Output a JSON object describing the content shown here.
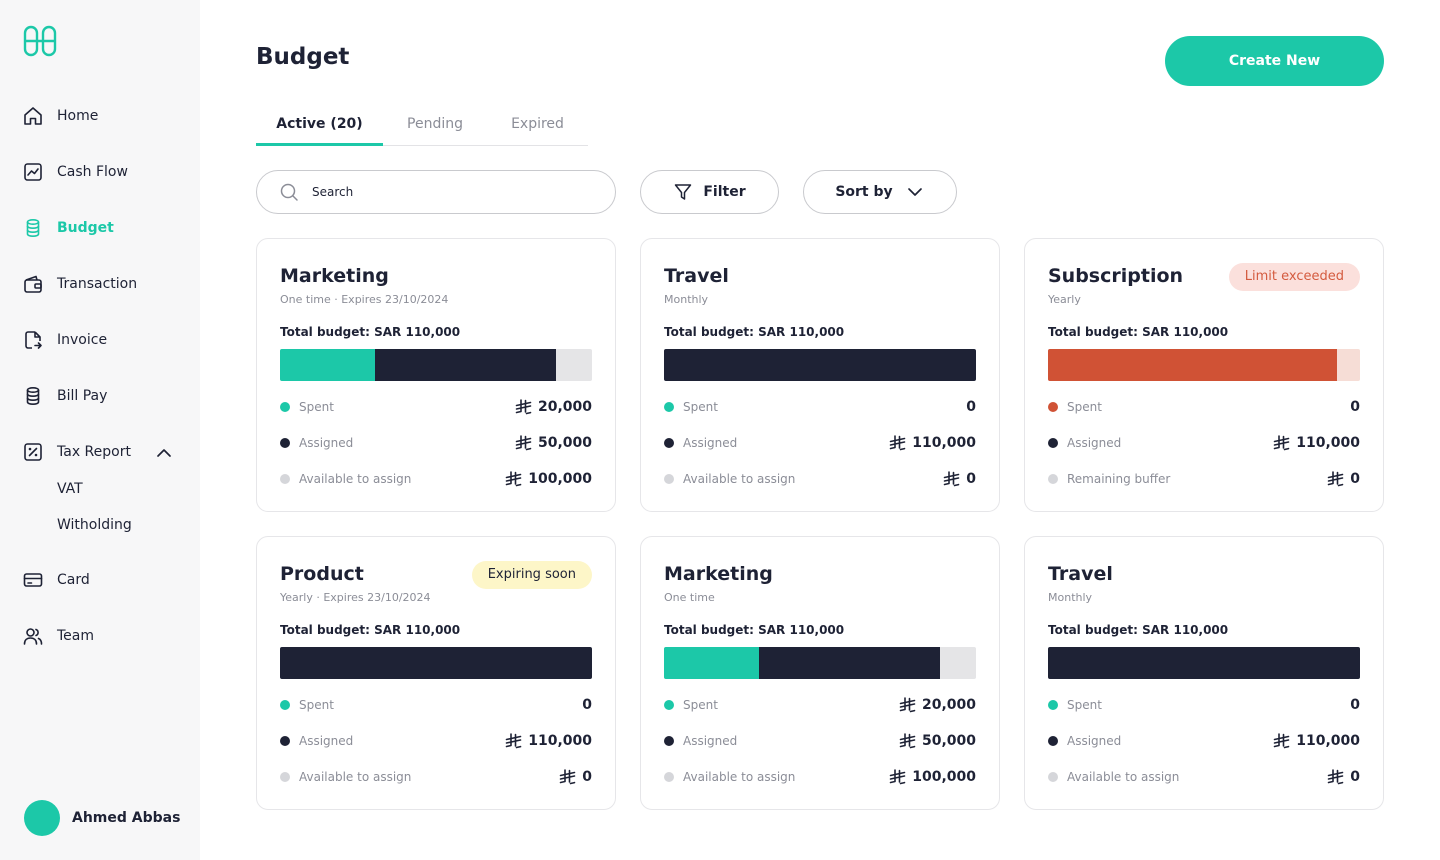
{
  "colors": {
    "accent": "#1cc8a8",
    "navy": "#1e2235",
    "danger": "#d05235",
    "danger_light": "#f6ddd6",
    "track": "#e5e5e7",
    "available_dot": "#d5d6da"
  },
  "sidebar": {
    "logo_icon": "brand-logo-icon",
    "items": [
      {
        "label": "Home",
        "icon": "home-icon"
      },
      {
        "label": "Cash Flow",
        "icon": "chart-icon"
      },
      {
        "label": "Budget",
        "icon": "coins-icon",
        "active": true
      },
      {
        "label": "Transaction",
        "icon": "wallet-icon"
      },
      {
        "label": "Invoice",
        "icon": "document-icon"
      },
      {
        "label": "Bill Pay",
        "icon": "coins-icon"
      },
      {
        "label": "Tax Report",
        "icon": "percent-receipt-icon",
        "expanded": true
      },
      {
        "label": "Card",
        "icon": "card-icon"
      },
      {
        "label": "Team",
        "icon": "team-icon"
      }
    ],
    "sub_items": [
      "VAT",
      "Witholding"
    ],
    "user": {
      "name": "Ahmed Abbas"
    }
  },
  "header": {
    "title": "Budget",
    "create_label": "Create New"
  },
  "tabs": [
    {
      "label": "Active (20)",
      "active": true
    },
    {
      "label": "Pending"
    },
    {
      "label": "Expired"
    }
  ],
  "toolbar": {
    "search_placeholder": "Search",
    "filter_label": "Filter",
    "sort_label": "Sort by"
  },
  "cards": [
    {
      "title": "Marketing",
      "subtitle": "One time · Expires 23/10/2024",
      "total": "Total budget: SAR 110,000",
      "bar": [
        {
          "color": "#1cc8a8",
          "share": 0.304
        },
        {
          "color": "#1e2235",
          "share": 0.58
        }
      ],
      "rows": [
        {
          "label": "Spent",
          "dot": "#1cc8a8",
          "amount": "20,000",
          "currency": true
        },
        {
          "label": "Assigned",
          "dot": "#1e2235",
          "amount": "50,000",
          "currency": true
        },
        {
          "label": "Available to assign",
          "dot": "#d5d6da",
          "amount": "100,000",
          "currency": true
        }
      ]
    },
    {
      "title": "Travel",
      "subtitle": "Monthly",
      "total": "Total budget: SAR 110,000",
      "bar": [
        {
          "color": "#1e2235",
          "share": 1
        }
      ],
      "rows": [
        {
          "label": "Spent",
          "dot": "#1cc8a8",
          "amount": "0",
          "currency": false
        },
        {
          "label": "Assigned",
          "dot": "#1e2235",
          "amount": "110,000",
          "currency": true
        },
        {
          "label": "Available to assign",
          "dot": "#d5d6da",
          "amount": "0",
          "currency": true
        }
      ]
    },
    {
      "title": "Subscription",
      "subtitle": "Yearly",
      "badge": "Limit exceeded",
      "badge_type": "danger",
      "total": "Total budget: SAR 110,000",
      "bar_track": "#f6ddd6",
      "bar": [
        {
          "color": "#d05235",
          "share": 0.926
        }
      ],
      "rows": [
        {
          "label": "Spent",
          "dot": "#d05235",
          "amount": "0",
          "currency": false
        },
        {
          "label": "Assigned",
          "dot": "#1e2235",
          "amount": "110,000",
          "currency": true
        },
        {
          "label": "Remaining buffer",
          "dot": "#d5d6da",
          "amount": "0",
          "currency": true
        }
      ]
    },
    {
      "title": "Product",
      "subtitle": "Yearly · Expires 23/10/2024",
      "badge": "Expiring soon",
      "badge_type": "warn",
      "total": "Total budget: SAR 110,000",
      "bar": [
        {
          "color": "#1e2235",
          "share": 1
        }
      ],
      "rows": [
        {
          "label": "Spent",
          "dot": "#1cc8a8",
          "amount": "0",
          "currency": false
        },
        {
          "label": "Assigned",
          "dot": "#1e2235",
          "amount": "110,000",
          "currency": true
        },
        {
          "label": "Available to assign",
          "dot": "#d5d6da",
          "amount": "0",
          "currency": true
        }
      ]
    },
    {
      "title": "Marketing",
      "subtitle": "One time",
      "total": "Total budget: SAR 110,000",
      "bar": [
        {
          "color": "#1cc8a8",
          "share": 0.304
        },
        {
          "color": "#1e2235",
          "share": 0.58
        }
      ],
      "rows": [
        {
          "label": "Spent",
          "dot": "#1cc8a8",
          "amount": "20,000",
          "currency": true
        },
        {
          "label": "Assigned",
          "dot": "#1e2235",
          "amount": "50,000",
          "currency": true
        },
        {
          "label": "Available to assign",
          "dot": "#d5d6da",
          "amount": "100,000",
          "currency": true
        }
      ]
    },
    {
      "title": "Travel",
      "subtitle": "Monthly",
      "total": "Total budget: SAR 110,000",
      "bar": [
        {
          "color": "#1e2235",
          "share": 1
        }
      ],
      "rows": [
        {
          "label": "Spent",
          "dot": "#1cc8a8",
          "amount": "0",
          "currency": false
        },
        {
          "label": "Assigned",
          "dot": "#1e2235",
          "amount": "110,000",
          "currency": true
        },
        {
          "label": "Available to assign",
          "dot": "#d5d6da",
          "amount": "0",
          "currency": true
        }
      ]
    }
  ]
}
